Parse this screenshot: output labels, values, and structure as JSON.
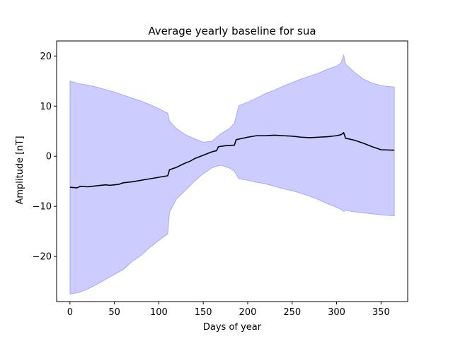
{
  "chart_data": {
    "type": "line",
    "title": "Average yearly baseline for sua",
    "xlabel": "Days of year",
    "ylabel": "Amplitude [nT]",
    "xlim": [
      -15,
      380
    ],
    "ylim": [
      -29,
      23
    ],
    "xticks": [
      0,
      50,
      100,
      150,
      200,
      250,
      300,
      350
    ],
    "yticks": [
      -20,
      -10,
      0,
      10,
      20
    ],
    "ytick_labels": [
      "−20",
      "−10",
      "0",
      "10",
      "20"
    ],
    "grid": false,
    "colors": {
      "mean_line": "#000000",
      "band_fill": "#0000ff",
      "band_fill_opacity": 0.2
    },
    "series": [
      {
        "style": "line",
        "x": [
          0,
          8,
          12,
          20,
          30,
          40,
          45,
          50,
          55,
          60,
          70,
          80,
          90,
          100,
          110,
          112,
          120,
          128,
          135,
          140,
          150,
          160,
          165,
          167,
          175,
          185,
          187,
          200,
          210,
          220,
          230,
          240,
          250,
          260,
          270,
          280,
          290,
          300,
          305,
          308,
          310,
          320,
          330,
          340,
          345,
          350,
          365
        ],
        "y": [
          -6.2,
          -6.3,
          -6.0,
          -6.1,
          -5.9,
          -5.7,
          -5.8,
          -5.7,
          -5.6,
          -5.3,
          -5.1,
          -4.8,
          -4.5,
          -4.2,
          -3.9,
          -2.7,
          -2.2,
          -1.5,
          -1.0,
          -0.5,
          0.2,
          0.9,
          1.1,
          1.9,
          2.1,
          2.2,
          3.3,
          3.8,
          4.1,
          4.1,
          4.2,
          4.1,
          4.0,
          3.8,
          3.7,
          3.8,
          3.9,
          4.1,
          4.3,
          4.7,
          3.6,
          3.2,
          2.6,
          1.9,
          1.6,
          1.3,
          1.2
        ]
      },
      {
        "style": "band",
        "x": [
          0,
          10,
          20,
          30,
          40,
          50,
          60,
          70,
          80,
          90,
          100,
          110,
          112,
          120,
          130,
          140,
          150,
          160,
          165,
          170,
          180,
          185,
          190,
          200,
          210,
          220,
          230,
          240,
          250,
          260,
          270,
          280,
          290,
          300,
          305,
          308,
          310,
          320,
          330,
          340,
          350,
          365
        ],
        "lower": [
          -27.5,
          -27.2,
          -26.5,
          -25.6,
          -24.6,
          -23.6,
          -22.6,
          -21.0,
          -19.8,
          -18.2,
          -16.8,
          -15.5,
          -11.2,
          -8.5,
          -6.8,
          -5.0,
          -3.5,
          -2.3,
          -2.0,
          -1.8,
          -2.4,
          -3.0,
          -4.5,
          -4.8,
          -5.2,
          -5.5,
          -6.0,
          -6.5,
          -6.9,
          -7.4,
          -8.0,
          -8.7,
          -9.5,
          -10.2,
          -10.6,
          -11.0,
          -10.8,
          -11.1,
          -11.3,
          -11.5,
          -11.7,
          -11.9
        ],
        "upper": [
          15.0,
          14.5,
          14.2,
          13.8,
          13.3,
          12.8,
          12.2,
          11.6,
          11.0,
          10.3,
          9.5,
          8.6,
          7.0,
          5.5,
          4.3,
          3.5,
          2.8,
          3.0,
          3.8,
          4.5,
          5.6,
          6.6,
          10.1,
          10.8,
          11.6,
          12.5,
          13.2,
          14.0,
          14.7,
          15.4,
          16.0,
          16.6,
          17.4,
          18.0,
          18.6,
          20.2,
          18.4,
          16.8,
          15.4,
          14.6,
          14.1,
          13.8
        ]
      }
    ]
  }
}
